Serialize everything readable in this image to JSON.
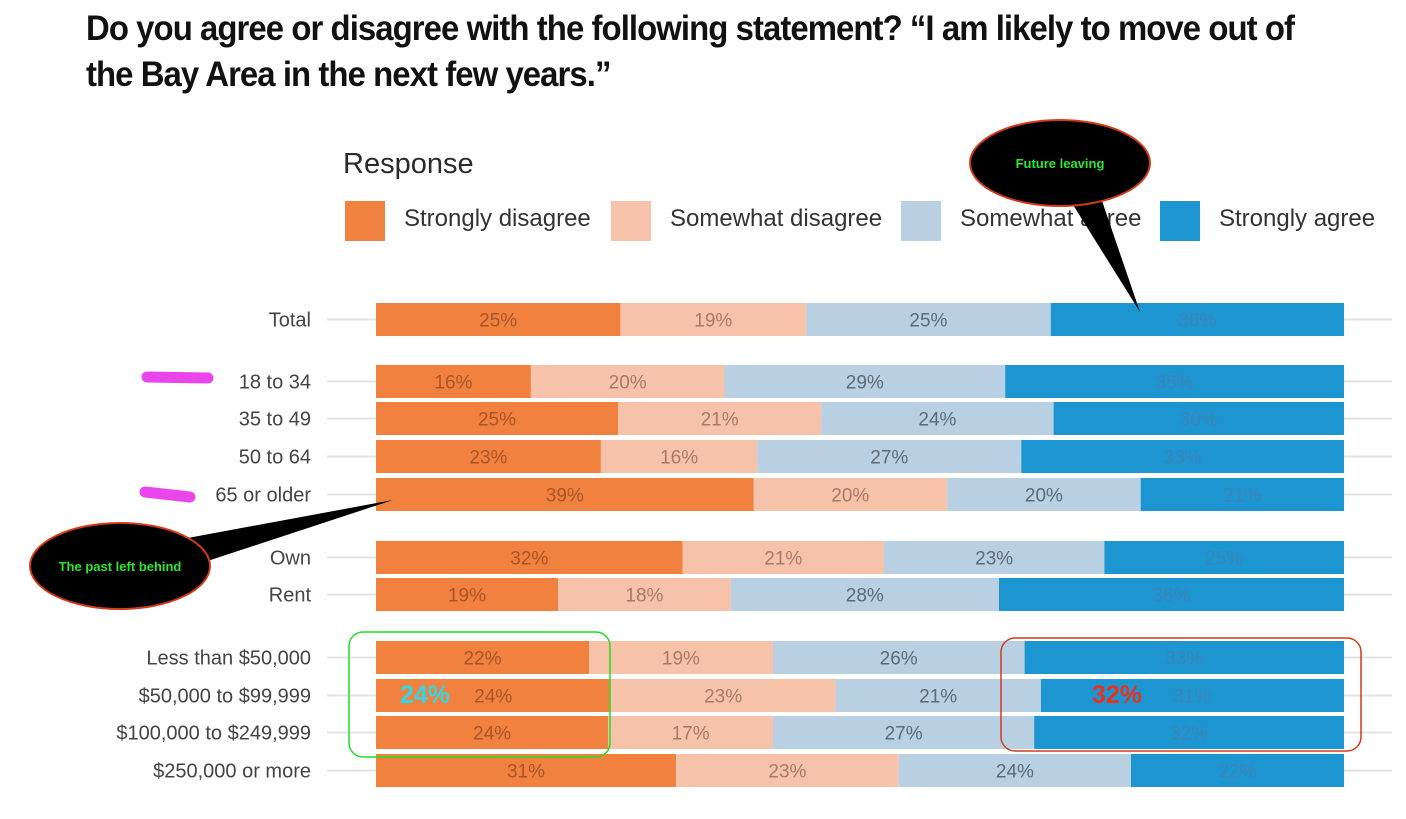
{
  "title": "Do you agree or disagree with the following statement? “I am likely to move out of the Bay Area in the next few years.”",
  "colors": {
    "strongly_disagree": "#f0813f",
    "somewhat_disagree": "#f6c2aa",
    "somewhat_agree": "#b8d0e2",
    "strongly_agree": "#1c95d1",
    "callout_fill": "#000000",
    "callout_border": "#d23a1a",
    "callout_text": "#2ee62e",
    "green_box": "#22dd22",
    "red_box": "#d23a1a",
    "highlight_marker": "#ea45ea",
    "annotation_cyan": "#33d6e6",
    "annotation_red": "#e8321e"
  },
  "annotations": {
    "future_leaving": "Future leaving",
    "past_left_behind": "The past left behind",
    "green_box_value": "24%",
    "red_box_value": "32%"
  },
  "chart_data": {
    "type": "bar",
    "orientation": "horizontal",
    "stacked": true,
    "legend_title": "Response",
    "legend_position": "top",
    "categories": [
      "Total",
      "18 to 34",
      "35 to 49",
      "50 to 64",
      "65 or older",
      "Own",
      "Rent",
      "Less than $50,000",
      "$50,000 to $99,999",
      "$100,000 to $249,999",
      "$250,000 or more"
    ],
    "groups": [
      [
        0
      ],
      [
        1,
        2,
        3,
        4
      ],
      [
        5,
        6
      ],
      [
        7,
        8,
        9,
        10
      ]
    ],
    "series": [
      {
        "name": "Strongly disagree",
        "values": [
          25,
          16,
          25,
          23,
          39,
          32,
          19,
          22,
          24,
          24,
          31
        ]
      },
      {
        "name": "Somewhat disagree",
        "values": [
          19,
          20,
          21,
          16,
          20,
          21,
          18,
          19,
          23,
          17,
          23
        ]
      },
      {
        "name": "Somewhat agree",
        "values": [
          25,
          29,
          24,
          27,
          20,
          23,
          28,
          26,
          21,
          27,
          24
        ]
      },
      {
        "name": "Strongly agree",
        "values": [
          30,
          35,
          30,
          33,
          21,
          25,
          36,
          33,
          31,
          32,
          22
        ]
      }
    ],
    "value_format": "{v}%"
  }
}
